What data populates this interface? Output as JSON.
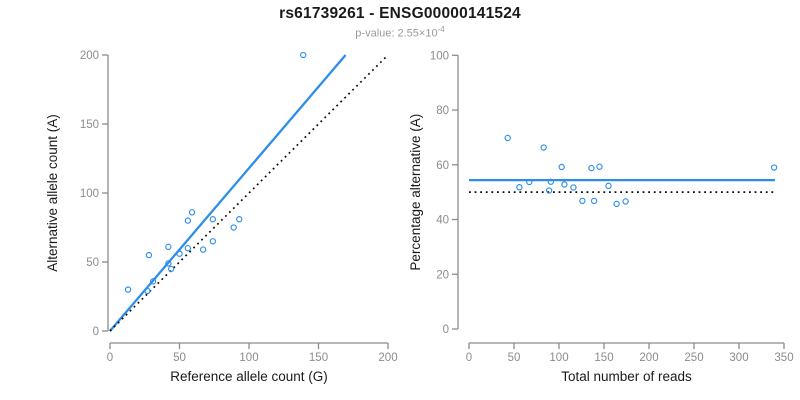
{
  "header": {
    "title": "rs61739261 - ENSG00000141524",
    "pvalue_label": "p-value: 2.55×10",
    "pvalue_exponent": "-4"
  },
  "colors": {
    "accent_blue": "#2E8DE8",
    "axis_gray": "#8C8C8C",
    "tick_label_gray": "#8C8C8C",
    "dotted_black": "#0a0a0a",
    "axis_title_black": "#1a1a1a"
  },
  "chart_data": [
    {
      "id": "allele-counts-scatter",
      "type": "scatter",
      "xlabel": "Reference allele count (G)",
      "ylabel": "Alternative allele count (A)",
      "xlim": [
        0,
        200
      ],
      "ylim": [
        0,
        200
      ],
      "xticks": [
        0,
        50,
        100,
        150,
        200
      ],
      "yticks": [
        0,
        50,
        100,
        150,
        200
      ],
      "grid": false,
      "points": [
        [
          13,
          30
        ],
        [
          27,
          29
        ],
        [
          28,
          55
        ],
        [
          31,
          36
        ],
        [
          42,
          49
        ],
        [
          42,
          61
        ],
        [
          44,
          45
        ],
        [
          50,
          56
        ],
        [
          56,
          60
        ],
        [
          56,
          80
        ],
        [
          59,
          86
        ],
        [
          67,
          59
        ],
        [
          74,
          65
        ],
        [
          74,
          81
        ],
        [
          89,
          75
        ],
        [
          93,
          81
        ],
        [
          139,
          200
        ]
      ],
      "lines": [
        {
          "name": "fit-line",
          "style": "solid",
          "x1": 0,
          "y1": 0,
          "x2": 169.5,
          "y2": 200
        },
        {
          "name": "identity-line",
          "style": "dotted",
          "x1": 0,
          "y1": 0,
          "x2": 200,
          "y2": 200
        }
      ]
    },
    {
      "id": "percentage-vs-coverage-scatter",
      "type": "scatter",
      "xlabel": "Total number of reads",
      "ylabel": "Percentage alternative (A)",
      "xlim": [
        0,
        350
      ],
      "ylim": [
        0,
        100
      ],
      "xticks": [
        0,
        50,
        100,
        150,
        200,
        250,
        300,
        350
      ],
      "yticks": [
        0,
        20,
        40,
        60,
        80,
        100
      ],
      "grid": false,
      "points": [
        [
          43,
          69.8
        ],
        [
          56,
          51.8
        ],
        [
          67,
          53.7
        ],
        [
          83,
          66.3
        ],
        [
          89,
          50.6
        ],
        [
          91,
          53.8
        ],
        [
          103,
          59.2
        ],
        [
          106,
          52.8
        ],
        [
          116,
          51.7
        ],
        [
          126,
          46.8
        ],
        [
          136,
          58.8
        ],
        [
          139,
          46.8
        ],
        [
          145,
          59.3
        ],
        [
          155,
          52.3
        ],
        [
          164,
          45.7
        ],
        [
          174,
          46.6
        ],
        [
          339,
          59.0
        ]
      ],
      "lines": [
        {
          "name": "mean-percentage-line",
          "style": "solid",
          "x1": 0,
          "y1": 54.4,
          "x2": 340,
          "y2": 54.4
        },
        {
          "name": "null-50pct-line",
          "style": "dotted",
          "x1": 0,
          "y1": 50,
          "x2": 340,
          "y2": 50
        }
      ]
    }
  ]
}
